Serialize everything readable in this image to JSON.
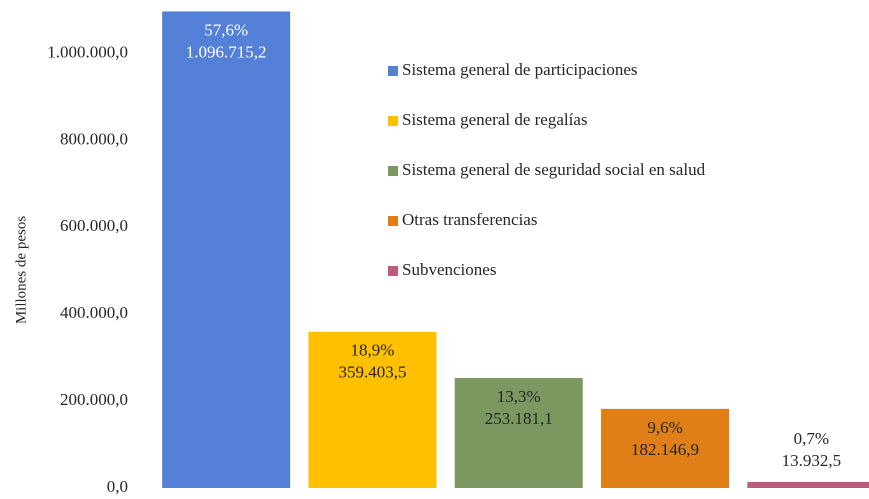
{
  "chart_data": {
    "type": "bar",
    "y_label": "Millones  de pesos",
    "ylim": [
      0,
      1100000
    ],
    "yticks": [
      {
        "value": 0,
        "label": "0,0"
      },
      {
        "value": 200000,
        "label": "200.000,0"
      },
      {
        "value": 400000,
        "label": "400.000,0"
      },
      {
        "value": 600000,
        "label": "600.000,0"
      },
      {
        "value": 800000,
        "label": "800.000,0"
      },
      {
        "value": 1000000,
        "label": "1.000.000,0"
      }
    ],
    "label_color": [
      "#ffffff",
      "#262626",
      "#262626",
      "#262626",
      "#262626"
    ],
    "series": [
      {
        "name": "Sistema general de participaciones",
        "color": "#5580d8",
        "values": [
          1096715.2
        ],
        "value_labels": [
          "1.096.715,2"
        ],
        "share_labels": [
          "57,6%"
        ]
      },
      {
        "name": "Sistema general de regalías",
        "color": "#ffc000",
        "values": [
          359403.5
        ],
        "value_labels": [
          "359.403,5"
        ],
        "share_labels": [
          "18,9%"
        ]
      },
      {
        "name": "Sistema general de seguridad social en salud",
        "color": "#7a9860",
        "values": [
          253181.1
        ],
        "value_labels": [
          "253.181,1"
        ],
        "share_labels": [
          "13,3%"
        ]
      },
      {
        "name": "Otras transferencias",
        "color": "#e07f17",
        "values": [
          182146.9
        ],
        "value_labels": [
          "182.146,9"
        ],
        "share_labels": [
          "9,6%"
        ]
      },
      {
        "name": "Subvenciones",
        "color": "#c05a7c",
        "values": [
          13932.5
        ],
        "value_labels": [
          "13.932,5"
        ],
        "share_labels": [
          "0,7%"
        ]
      }
    ]
  }
}
